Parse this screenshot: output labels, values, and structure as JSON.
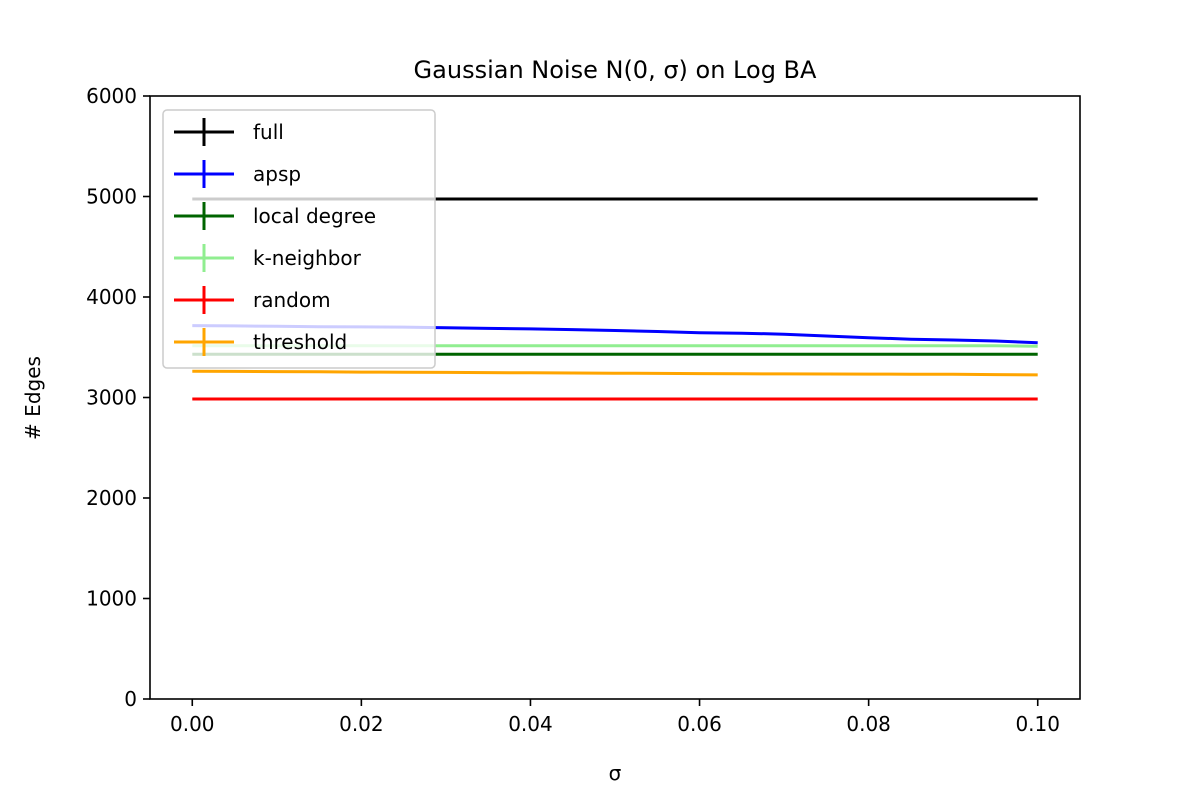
{
  "chart_data": {
    "type": "line",
    "title": "Gaussian Noise N(0, σ) on Log BA",
    "xlabel": "σ",
    "ylabel": "# Edges",
    "xlim": [
      -0.005,
      0.105
    ],
    "ylim": [
      0,
      6000
    ],
    "xticks": [
      "0.00",
      "0.02",
      "0.04",
      "0.06",
      "0.08",
      "0.10"
    ],
    "xtick_values": [
      0.0,
      0.02,
      0.04,
      0.06,
      0.08,
      0.1
    ],
    "yticks": [
      "0",
      "1000",
      "2000",
      "3000",
      "4000",
      "5000",
      "6000"
    ],
    "ytick_values": [
      0,
      1000,
      2000,
      3000,
      4000,
      5000,
      6000
    ],
    "grid": false,
    "legend_position": "top-left",
    "x": [
      0.0,
      0.005,
      0.01,
      0.015,
      0.02,
      0.025,
      0.03,
      0.035,
      0.04,
      0.045,
      0.05,
      0.055,
      0.06,
      0.065,
      0.07,
      0.075,
      0.08,
      0.085,
      0.09,
      0.095,
      0.1
    ],
    "series": [
      {
        "name": "full",
        "color": "#000000",
        "values": [
          4975,
          4975,
          4975,
          4975,
          4975,
          4975,
          4975,
          4975,
          4975,
          4975,
          4975,
          4975,
          4975,
          4975,
          4975,
          4975,
          4975,
          4975,
          4975,
          4975,
          4975
        ]
      },
      {
        "name": "apsp",
        "color": "#0000ff",
        "values": [
          3715,
          3712,
          3708,
          3704,
          3702,
          3700,
          3695,
          3688,
          3683,
          3676,
          3667,
          3657,
          3645,
          3640,
          3630,
          3612,
          3595,
          3580,
          3572,
          3562,
          3545
        ]
      },
      {
        "name": "local degree",
        "color": "#006400",
        "values": [
          3430,
          3430,
          3430,
          3430,
          3430,
          3430,
          3430,
          3430,
          3430,
          3430,
          3430,
          3430,
          3430,
          3430,
          3430,
          3430,
          3430,
          3430,
          3430,
          3430,
          3430
        ]
      },
      {
        "name": "k-neighbor",
        "color": "#90ee90",
        "values": [
          3515,
          3515,
          3515,
          3515,
          3515,
          3515,
          3515,
          3515,
          3515,
          3515,
          3515,
          3515,
          3515,
          3515,
          3515,
          3515,
          3515,
          3515,
          3515,
          3515,
          3510
        ]
      },
      {
        "name": "random",
        "color": "#ff0000",
        "values": [
          2985,
          2985,
          2985,
          2985,
          2985,
          2985,
          2985,
          2985,
          2985,
          2985,
          2985,
          2985,
          2985,
          2985,
          2985,
          2985,
          2985,
          2985,
          2985,
          2985,
          2985
        ]
      },
      {
        "name": "threshold",
        "color": "#ffa500",
        "values": [
          3262,
          3260,
          3258,
          3256,
          3253,
          3252,
          3250,
          3248,
          3246,
          3244,
          3242,
          3240,
          3238,
          3236,
          3235,
          3234,
          3233,
          3232,
          3232,
          3228,
          3225
        ]
      }
    ]
  }
}
